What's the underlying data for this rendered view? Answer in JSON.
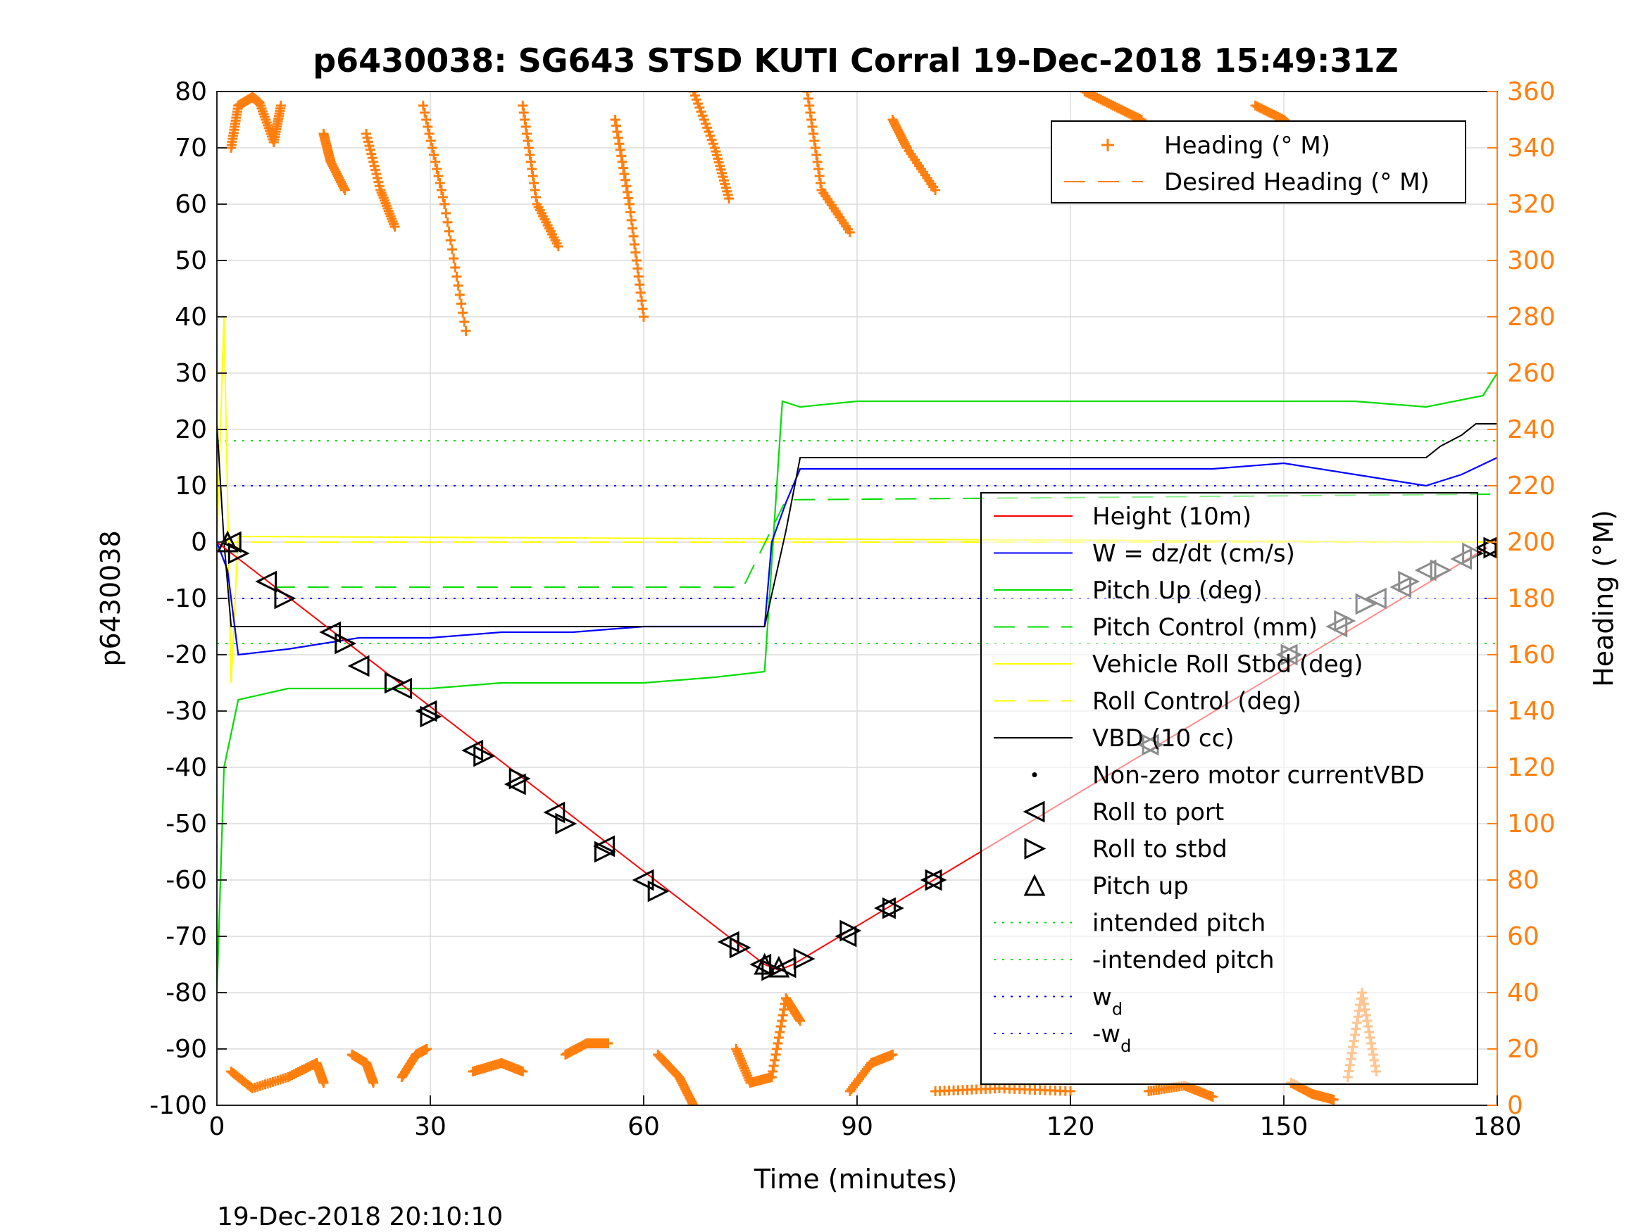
{
  "chart_data": {
    "type": "line",
    "title": "p6430038: SG643 STSD KUTI Corral 19-Dec-2018 15:49:31Z",
    "xlabel": "Time (minutes)",
    "ylabel": "p6430038",
    "ylabel_right": "Heading (°M)",
    "footer": "19-Dec-2018 20:10:10",
    "xlim": [
      0,
      180
    ],
    "ylim": [
      -100,
      80
    ],
    "ylim_right": [
      0,
      360
    ],
    "xticks": [
      0,
      30,
      60,
      90,
      120,
      150,
      180
    ],
    "yticks": [
      -100,
      -90,
      -80,
      -70,
      -60,
      -50,
      -40,
      -30,
      -20,
      -10,
      0,
      10,
      20,
      30,
      40,
      50,
      60,
      70,
      80
    ],
    "yticks_right": [
      0,
      20,
      40,
      60,
      80,
      100,
      120,
      140,
      160,
      180,
      200,
      220,
      240,
      260,
      280,
      300,
      320,
      340,
      360
    ],
    "grid": true,
    "colors": {
      "heading": "#ff7f0e",
      "height": "#ff0000",
      "w": "#0000ff",
      "pitch": "#00dd00",
      "roll": "#ffff00",
      "vbd": "#000000"
    },
    "legend_top": {
      "placement": "top-right",
      "entries": [
        "Heading (° M)",
        "Desired Heading (° M)"
      ]
    },
    "legend_main": {
      "placement": "right",
      "entries": [
        "Height (10m)",
        "W = dz/dt (cm/s)",
        "Pitch Up (deg)",
        "Pitch Control (mm)",
        "Vehicle Roll Stbd (deg)",
        "Roll Control (deg)",
        "VBD (10 cc)",
        "Non-zero motor currentVBD",
        "Roll to port",
        "Roll to stbd",
        "Pitch up",
        "intended pitch",
        "-intended pitch",
        "w",
        "-w"
      ],
      "subscript": "d"
    },
    "series": [
      {
        "name": "Height (10m)",
        "x": [
          0,
          77,
          79,
          81,
          178.5
        ],
        "y": [
          0,
          -75,
          -76,
          -75,
          -1
        ]
      },
      {
        "name": "W = dz/dt (cm/s)",
        "x": [
          0,
          1.5,
          3,
          10,
          20,
          30,
          40,
          50,
          60,
          70,
          77,
          78,
          80,
          82,
          90,
          100,
          110,
          120,
          130,
          140,
          150,
          160,
          165,
          170,
          175,
          180
        ],
        "y": [
          0,
          -5,
          -20,
          -19,
          -17,
          -17,
          -16,
          -16,
          -15,
          -15,
          -15,
          0,
          7,
          13,
          13,
          13,
          13,
          13,
          13,
          13,
          14,
          12,
          11,
          10,
          12,
          15
        ]
      },
      {
        "name": "Pitch Up (deg)",
        "x": [
          0,
          1,
          3,
          10,
          20,
          30,
          40,
          50,
          60,
          70,
          77,
          79.5,
          82,
          90,
          100,
          120,
          140,
          160,
          170,
          178,
          180
        ],
        "y": [
          -80,
          -40,
          -28,
          -26,
          -26,
          -26,
          -25,
          -25,
          -25,
          -24,
          -23,
          25,
          24,
          25,
          25,
          25,
          25,
          25,
          24,
          26,
          30
        ]
      },
      {
        "name": "Pitch Control (mm)",
        "x": [
          8,
          74,
          80,
          179
        ],
        "y": [
          -8,
          -8,
          7.5,
          8.5
        ]
      },
      {
        "name": "Vehicle Roll Stbd (deg)",
        "x": [
          0,
          1,
          2,
          3,
          180
        ],
        "y": [
          0,
          40,
          -25,
          1,
          0
        ]
      },
      {
        "name": "Roll Control (deg)",
        "x": [
          0,
          180
        ],
        "y": [
          0,
          0
        ]
      },
      {
        "name": "VBD (10 cc)",
        "x": [
          0,
          1,
          2,
          77,
          80,
          82,
          150,
          170,
          172,
          175,
          177,
          180
        ],
        "y": [
          21,
          0,
          -15,
          -15,
          2,
          15,
          15,
          15,
          17,
          19,
          21,
          21
        ]
      },
      {
        "name": "intended pitch",
        "x": [
          0,
          180
        ],
        "y": [
          18,
          18
        ]
      },
      {
        "name": "-intended pitch",
        "x": [
          0,
          180
        ],
        "y": [
          -18,
          -18
        ]
      },
      {
        "name": "w_d",
        "x": [
          0,
          180
        ],
        "y": [
          10,
          10
        ]
      },
      {
        "name": "-w_d",
        "x": [
          0,
          180
        ],
        "y": [
          -10,
          -10
        ]
      },
      {
        "name": "Desired Heading (° M)",
        "x": [
          0,
          180
        ],
        "y": [
          360,
          360
        ]
      }
    ],
    "roll_to_port": [
      [
        2,
        0
      ],
      [
        7,
        -7
      ],
      [
        16,
        -16
      ],
      [
        20,
        -22
      ],
      [
        26,
        -26
      ],
      [
        29.5,
        -30
      ],
      [
        36,
        -37
      ],
      [
        42,
        -43
      ],
      [
        47.5,
        -48
      ],
      [
        54.5,
        -54
      ],
      [
        60,
        -60
      ],
      [
        72,
        -71
      ],
      [
        76.5,
        -75
      ],
      [
        80,
        -75.5
      ],
      [
        88.5,
        -70
      ],
      [
        94,
        -65
      ],
      [
        100.5,
        -60
      ],
      [
        131,
        -36
      ],
      [
        150.5,
        -20
      ],
      [
        157.5,
        -15
      ],
      [
        163,
        -10
      ],
      [
        166.5,
        -8
      ],
      [
        170,
        -5
      ],
      [
        175,
        -3
      ],
      [
        178.5,
        -1
      ]
    ],
    "roll_to_stbd": [
      [
        3,
        -2
      ],
      [
        9.5,
        -10
      ],
      [
        18,
        -18
      ],
      [
        25,
        -25
      ],
      [
        30,
        -31
      ],
      [
        37.5,
        -38
      ],
      [
        42.5,
        -42
      ],
      [
        49,
        -50
      ],
      [
        54.5,
        -55
      ],
      [
        62,
        -62
      ],
      [
        73.5,
        -72
      ],
      [
        78,
        -76
      ],
      [
        82.5,
        -74
      ],
      [
        89,
        -69
      ],
      [
        95,
        -65
      ],
      [
        101,
        -60
      ],
      [
        131.5,
        -36
      ],
      [
        151,
        -20
      ],
      [
        158.5,
        -14
      ],
      [
        161.5,
        -11
      ],
      [
        167.5,
        -7
      ],
      [
        172,
        -5
      ],
      [
        176.5,
        -2
      ],
      [
        179.5,
        -1
      ]
    ],
    "pitch_up": [
      [
        1.5,
        0
      ],
      [
        77,
        -75
      ],
      [
        79,
        -75.5
      ]
    ],
    "heading_segments": [
      {
        "x": [
          2,
          3,
          5,
          6,
          8,
          9
        ],
        "y": [
          340,
          355,
          358,
          356,
          342,
          355
        ]
      },
      {
        "x": [
          15,
          16,
          18
        ],
        "y": [
          345,
          335,
          325
        ]
      },
      {
        "x": [
          21,
          23,
          25
        ],
        "y": [
          345,
          325,
          312
        ]
      },
      {
        "x": [
          29,
          32,
          35
        ],
        "y": [
          355,
          320,
          275
        ]
      },
      {
        "x": [
          43,
          45,
          48
        ],
        "y": [
          355,
          320,
          305
        ]
      },
      {
        "x": [
          56,
          58,
          60
        ],
        "y": [
          350,
          320,
          280
        ]
      },
      {
        "x": [
          67,
          70,
          72
        ],
        "y": [
          360,
          340,
          322
        ]
      },
      {
        "x": [
          83,
          85,
          89
        ],
        "y": [
          360,
          325,
          310
        ]
      },
      {
        "x": [
          95,
          97,
          101
        ],
        "y": [
          350,
          340,
          325
        ]
      },
      {
        "x": [
          122,
          126,
          130
        ],
        "y": [
          360,
          355,
          350
        ]
      },
      {
        "x": [
          146,
          150,
          152
        ],
        "y": [
          355,
          350,
          345
        ]
      },
      {
        "x": [
          2,
          5,
          10,
          14,
          15
        ],
        "y": [
          12,
          6,
          10,
          15,
          8
        ]
      },
      {
        "x": [
          19,
          21,
          22
        ],
        "y": [
          18,
          15,
          8
        ]
      },
      {
        "x": [
          26,
          28,
          29.5
        ],
        "y": [
          10,
          18,
          20
        ]
      },
      {
        "x": [
          36,
          40,
          43
        ],
        "y": [
          12,
          15,
          12
        ]
      },
      {
        "x": [
          49,
          52,
          55
        ],
        "y": [
          18,
          22,
          22
        ]
      },
      {
        "x": [
          62,
          65,
          67
        ],
        "y": [
          18,
          10,
          0
        ]
      },
      {
        "x": [
          73,
          75,
          78,
          80,
          82
        ],
        "y": [
          20,
          8,
          10,
          38,
          30
        ]
      },
      {
        "x": [
          89,
          92,
          95
        ],
        "y": [
          5,
          15,
          18
        ]
      },
      {
        "x": [
          101,
          110,
          120
        ],
        "y": [
          5,
          6,
          5
        ]
      },
      {
        "x": [
          131,
          136,
          140
        ],
        "y": [
          5,
          7,
          3
        ]
      },
      {
        "x": [
          151,
          154,
          157
        ],
        "y": [
          8,
          4,
          2
        ]
      },
      {
        "x": [
          159,
          161,
          163
        ],
        "y": [
          10,
          40,
          12
        ]
      }
    ]
  }
}
